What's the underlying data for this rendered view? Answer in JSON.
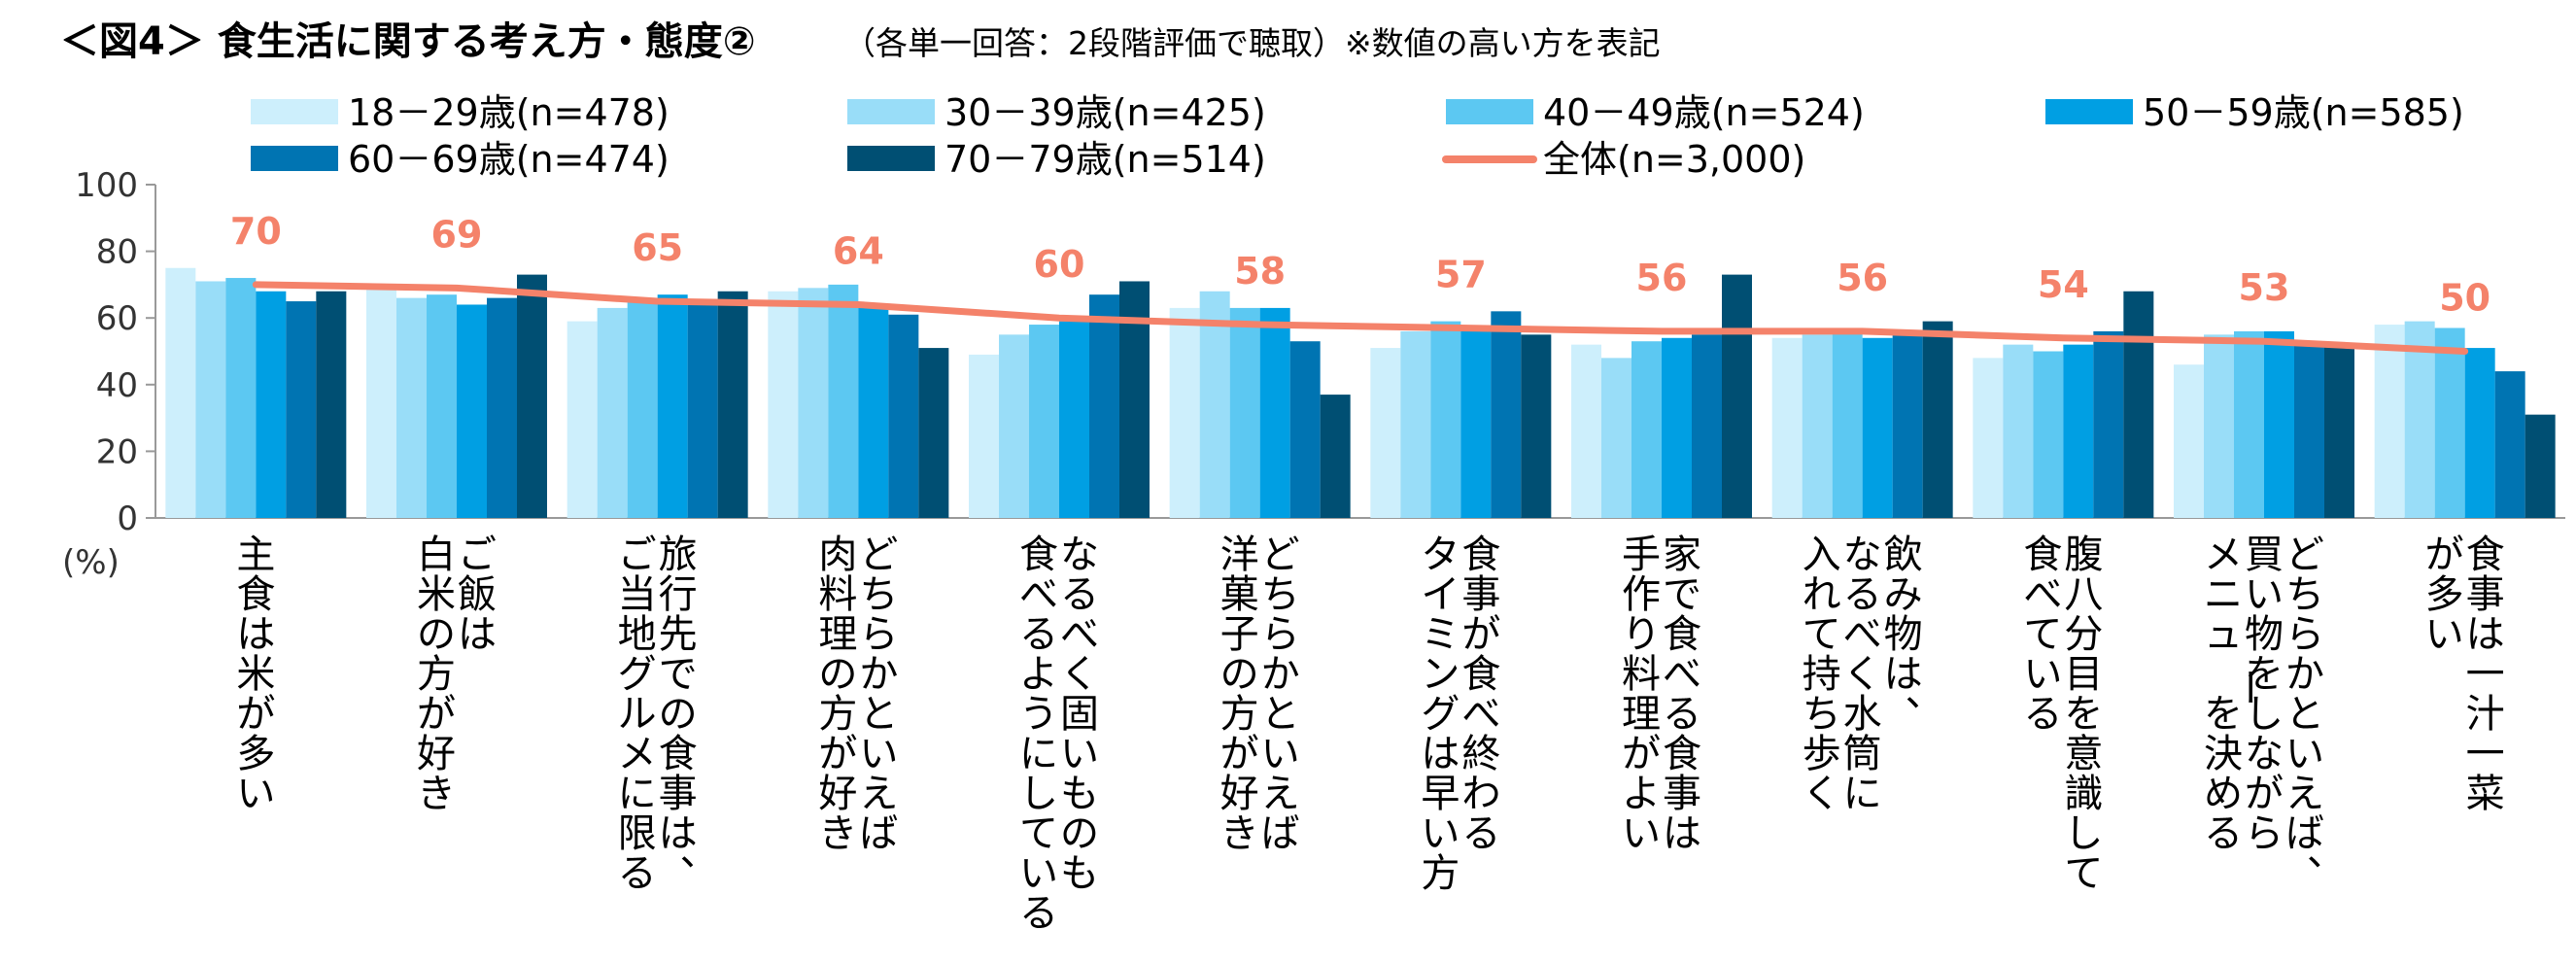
{
  "chart_data": {
    "type": "bar",
    "title": "＜図4＞ 食生活に関する考え方・態度②",
    "subtitle": "（各単一回答：2段階評価で聴取）※数値の高い方を表記",
    "ylabel": "(%)",
    "ylim": [
      0,
      100
    ],
    "yticks": [
      0,
      20,
      40,
      60,
      80,
      100
    ],
    "grid": false,
    "legend_position": "top",
    "categories": [
      [
        "主食は米が多い"
      ],
      [
        "ご飯は",
        "白米の方が好き"
      ],
      [
        "旅行先での食事は、",
        "ご当地グルメに限る"
      ],
      [
        "どちらかといえば",
        "肉料理の方が好き"
      ],
      [
        "なるべく固いものも",
        "食べるようにしている"
      ],
      [
        "どちらかといえば",
        "洋菓子の方が好き"
      ],
      [
        "食事が食べ終わる",
        "タイミングは早い方"
      ],
      [
        "家で食べる食事は",
        "手作り料理がよい"
      ],
      [
        "飲み物は、",
        "なるべく水筒に",
        "入れて持ち歩く"
      ],
      [
        "腹八分目を意識して",
        "食べている"
      ],
      [
        "どちらかといえば、",
        "買い物をしながら",
        "メニューを決める"
      ],
      [
        "食事は一汁一菜",
        "が多い"
      ]
    ],
    "series": [
      {
        "name": "18－29歳(n=478)",
        "color": "#CDEFFC",
        "values": [
          75,
          69,
          59,
          68,
          49,
          63,
          51,
          52,
          54,
          48,
          46,
          58
        ]
      },
      {
        "name": "30－39歳(n=425)",
        "color": "#99DDF8",
        "values": [
          71,
          66,
          63,
          69,
          55,
          68,
          56,
          48,
          55,
          52,
          55,
          59
        ]
      },
      {
        "name": "40－49歳(n=524)",
        "color": "#5CC8F2",
        "values": [
          72,
          67,
          65,
          70,
          58,
          63,
          59,
          53,
          56,
          50,
          56,
          57
        ]
      },
      {
        "name": "50－59歳(n=585)",
        "color": "#009FE3",
        "values": [
          68,
          64,
          67,
          63,
          59,
          63,
          56,
          54,
          54,
          52,
          56,
          51
        ]
      },
      {
        "name": "60－69歳(n=474)",
        "color": "#0074B2",
        "values": [
          65,
          66,
          64,
          61,
          67,
          53,
          62,
          55,
          55,
          56,
          53,
          44
        ]
      },
      {
        "name": "70－79歳(n=514)",
        "color": "#004F73",
        "values": [
          68,
          73,
          68,
          51,
          71,
          37,
          55,
          73,
          59,
          68,
          52,
          31
        ]
      }
    ],
    "total": {
      "name": "全体(n=3,000)",
      "color": "#F4826A",
      "values": [
        70,
        69,
        65,
        64,
        60,
        58,
        57,
        56,
        56,
        54,
        53,
        50
      ]
    }
  }
}
